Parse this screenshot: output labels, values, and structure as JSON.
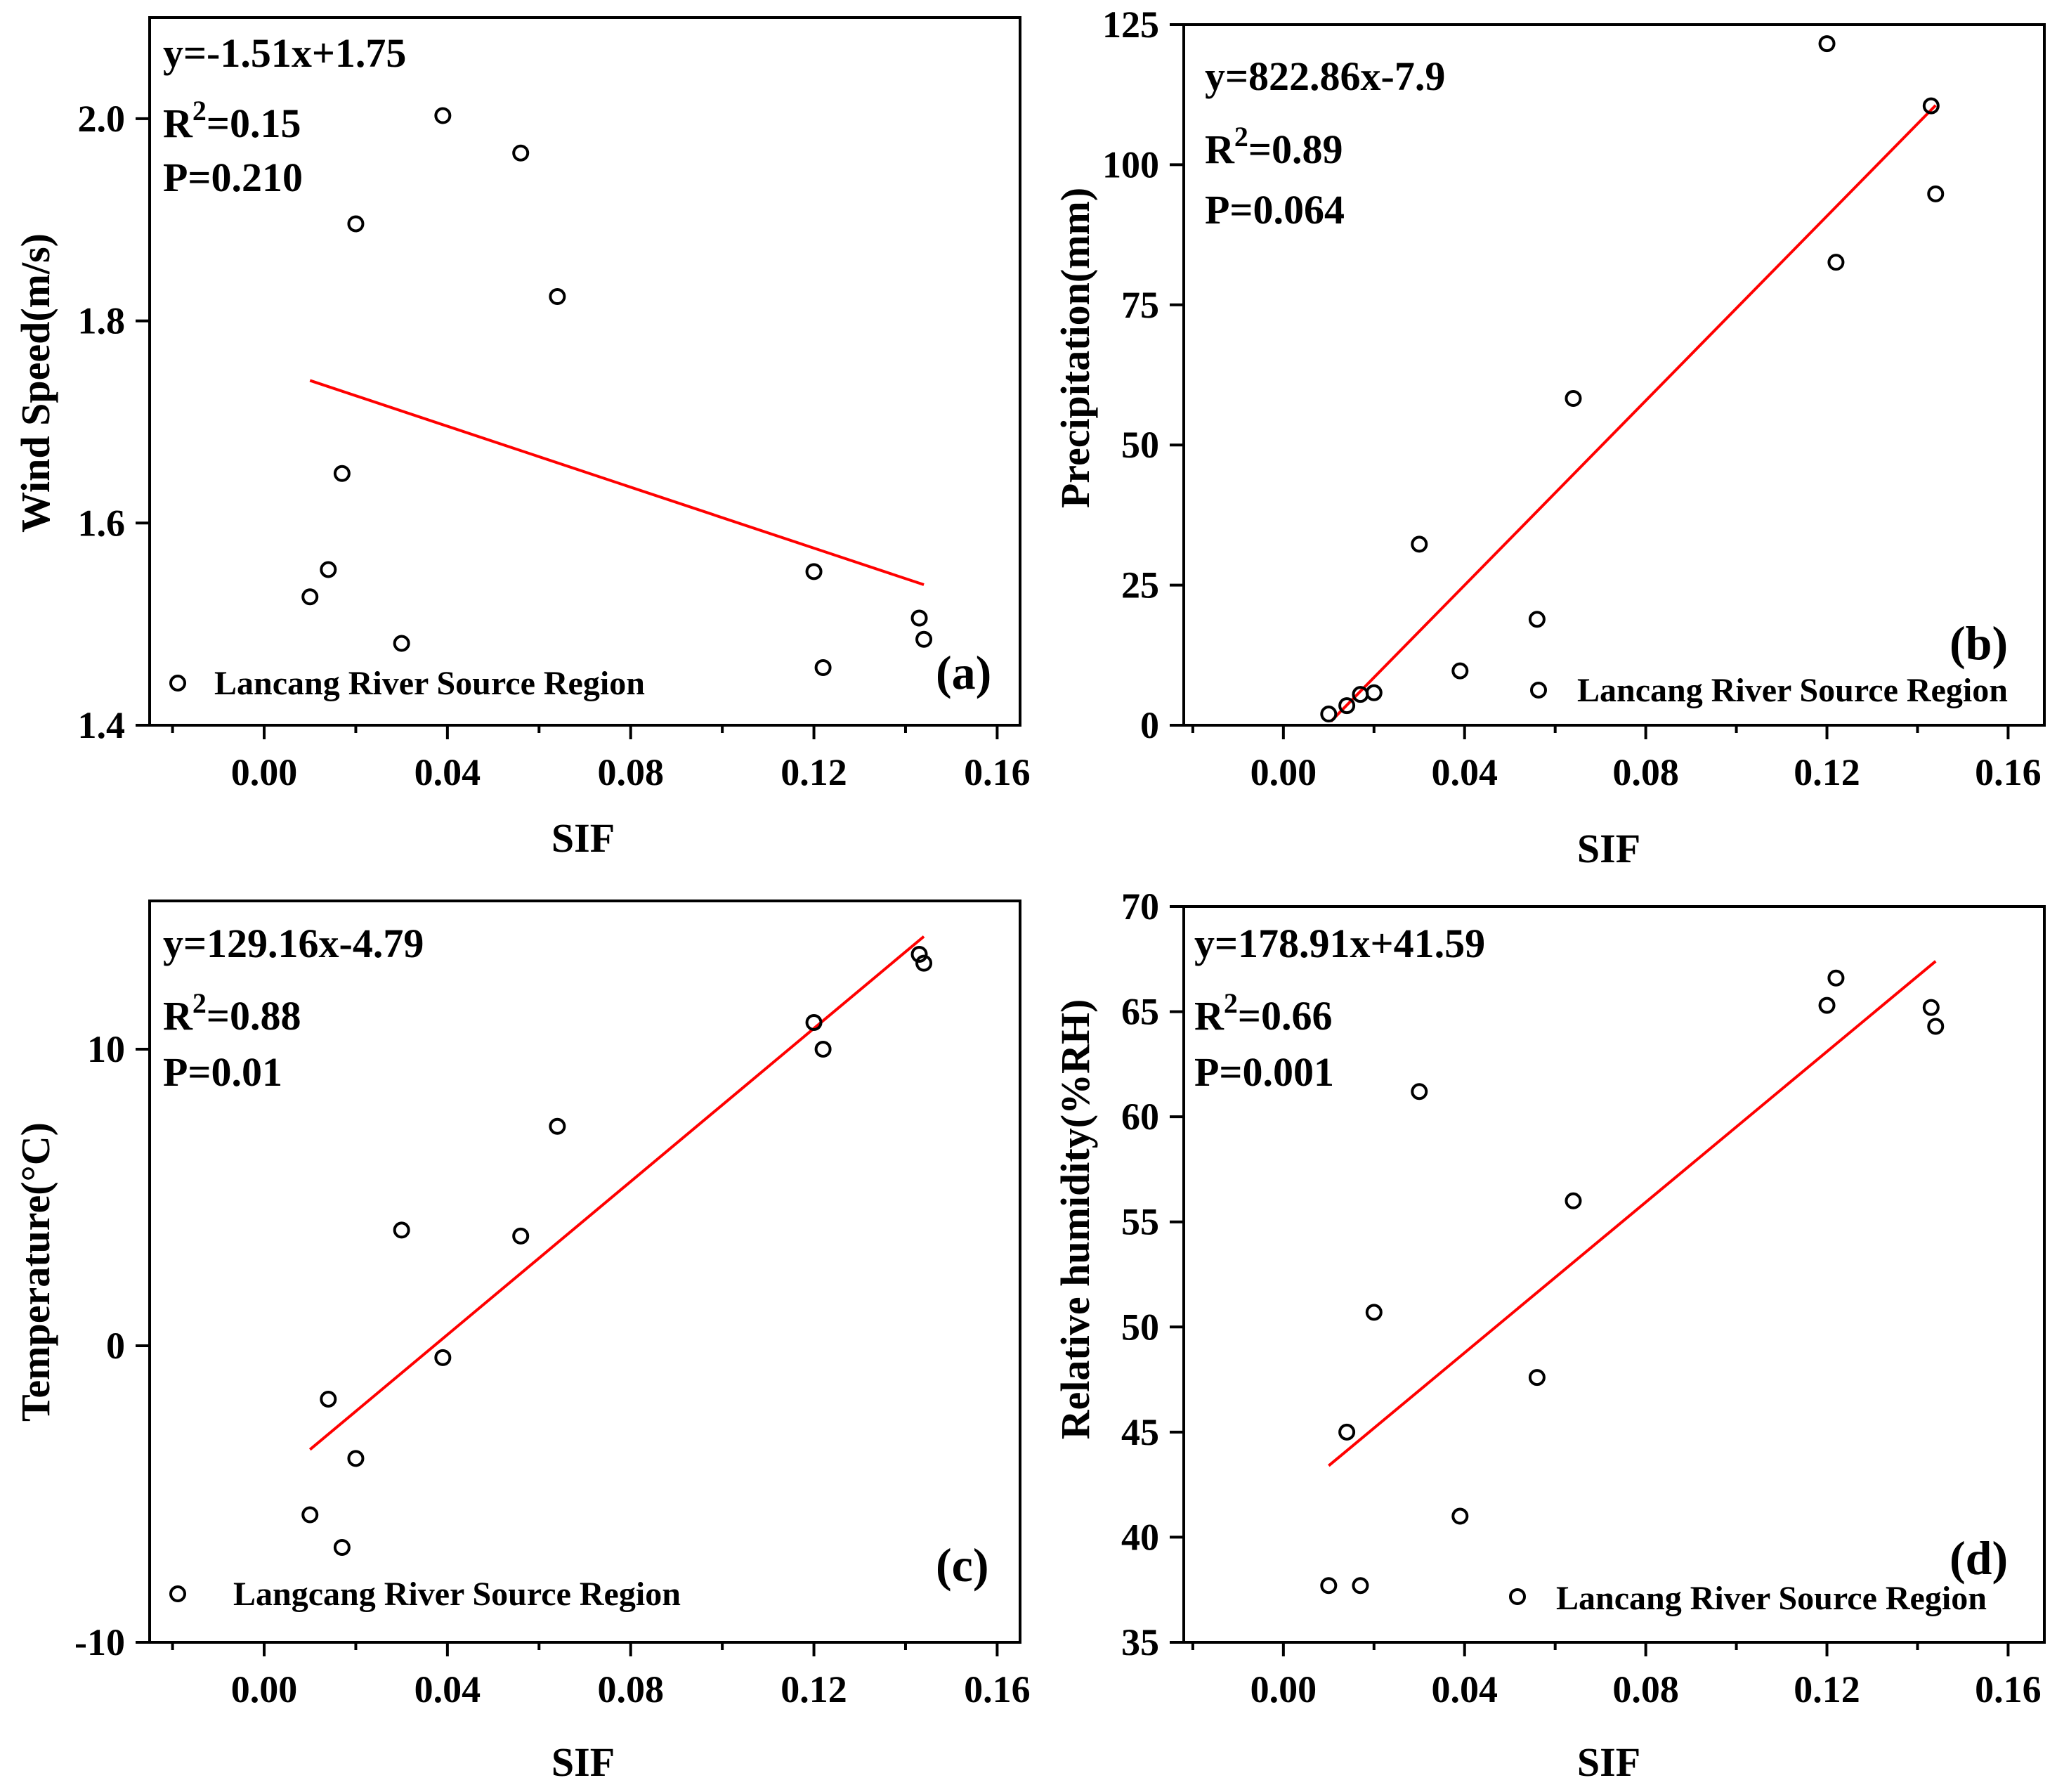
{
  "chart_data": [
    {
      "type": "scatter",
      "panel_label": "(a)",
      "xlabel": "SIF",
      "ylabel": "Wind Speed(m/s)",
      "xlim": [
        -0.025,
        0.165
      ],
      "ylim": [
        1.4,
        2.1
      ],
      "xticks": [
        0.0,
        0.04,
        0.08,
        0.12,
        0.16
      ],
      "xtick_labels": [
        "0.00",
        "0.04",
        "0.08",
        "0.12",
        "0.16"
      ],
      "yticks": [
        1.4,
        1.6,
        1.8,
        2.0
      ],
      "ytick_labels": [
        "1.4",
        "1.6",
        "1.8",
        "2.0"
      ],
      "equation": "y=-1.51x+1.75",
      "r2_prefix": "R",
      "r2_sup": "2",
      "r2_value": "=0.15",
      "p_value": "P=0.210",
      "legend": "Lancang River Source Region",
      "fit": {
        "x": [
          0.01,
          0.144
        ],
        "y": [
          1.741,
          1.539
        ]
      },
      "points": [
        {
          "x": 0.01,
          "y": 1.527
        },
        {
          "x": 0.014,
          "y": 1.554
        },
        {
          "x": 0.017,
          "y": 1.649
        },
        {
          "x": 0.02,
          "y": 1.896
        },
        {
          "x": 0.03,
          "y": 1.481
        },
        {
          "x": 0.039,
          "y": 2.003
        },
        {
          "x": 0.056,
          "y": 1.966
        },
        {
          "x": 0.064,
          "y": 1.824
        },
        {
          "x": 0.12,
          "y": 1.552
        },
        {
          "x": 0.122,
          "y": 1.457
        },
        {
          "x": 0.143,
          "y": 1.506
        },
        {
          "x": 0.144,
          "y": 1.485
        }
      ]
    },
    {
      "type": "scatter",
      "panel_label": "(b)",
      "xlabel": "SIF",
      "ylabel": "Precipitation(mm)",
      "xlim": [
        -0.022,
        0.168
      ],
      "ylim": [
        0,
        125
      ],
      "xticks": [
        0.0,
        0.04,
        0.08,
        0.12,
        0.16
      ],
      "xtick_labels": [
        "0.00",
        "0.04",
        "0.08",
        "0.12",
        "0.16"
      ],
      "yticks": [
        0,
        25,
        50,
        75,
        100,
        125
      ],
      "ytick_labels": [
        "0",
        "25",
        "50",
        "75",
        "100",
        "125"
      ],
      "equation": "y=822.86x-7.9",
      "r2_prefix": "R",
      "r2_sup": "2",
      "r2_value": "=0.89",
      "p_value": "P=0.064",
      "legend": "Lancang River Source Region",
      "fit": {
        "x": [
          0.0105,
          0.144
        ],
        "y": [
          0.7,
          110.6
        ]
      },
      "points": [
        {
          "x": 0.01,
          "y": 2.0
        },
        {
          "x": 0.014,
          "y": 3.5
        },
        {
          "x": 0.017,
          "y": 5.5
        },
        {
          "x": 0.02,
          "y": 5.8
        },
        {
          "x": 0.03,
          "y": 32.3
        },
        {
          "x": 0.039,
          "y": 9.7
        },
        {
          "x": 0.056,
          "y": 18.9
        },
        {
          "x": 0.064,
          "y": 58.3
        },
        {
          "x": 0.12,
          "y": 121.6
        },
        {
          "x": 0.122,
          "y": 82.6
        },
        {
          "x": 0.143,
          "y": 110.5
        },
        {
          "x": 0.144,
          "y": 94.8
        }
      ]
    },
    {
      "type": "scatter",
      "panel_label": "(c)",
      "xlabel": "SIF",
      "ylabel": "Temperature(°C)",
      "xlim": [
        -0.025,
        0.165
      ],
      "ylim": [
        -10,
        15
      ],
      "xticks": [
        0.0,
        0.04,
        0.08,
        0.12,
        0.16
      ],
      "xtick_labels": [
        "0.00",
        "0.04",
        "0.08",
        "0.12",
        "0.16"
      ],
      "yticks": [
        -10,
        0,
        10
      ],
      "ytick_labels": [
        "-10",
        "0",
        "10"
      ],
      "equation": "y=129.16x-4.79",
      "r2_prefix": "R",
      "r2_sup": "2",
      "r2_value": "=0.88",
      "p_value": "P=0.01",
      "legend": "Langcang River Source Region",
      "fit": {
        "x": [
          0.01,
          0.144
        ],
        "y": [
          -3.5,
          13.8
        ]
      },
      "points": [
        {
          "x": 0.01,
          "y": -5.7
        },
        {
          "x": 0.014,
          "y": -1.8
        },
        {
          "x": 0.017,
          "y": -6.8
        },
        {
          "x": 0.02,
          "y": -3.8
        },
        {
          "x": 0.03,
          "y": 3.9
        },
        {
          "x": 0.039,
          "y": -0.4
        },
        {
          "x": 0.056,
          "y": 3.7
        },
        {
          "x": 0.064,
          "y": 7.4
        },
        {
          "x": 0.12,
          "y": 10.9
        },
        {
          "x": 0.122,
          "y": 10.0
        },
        {
          "x": 0.143,
          "y": 13.2
        },
        {
          "x": 0.144,
          "y": 12.9
        }
      ]
    },
    {
      "type": "scatter",
      "panel_label": "(d)",
      "xlabel": "SIF",
      "ylabel": "Relative humidity(%RH)",
      "xlim": [
        -0.022,
        0.168
      ],
      "ylim": [
        35,
        70
      ],
      "xticks": [
        0.0,
        0.04,
        0.08,
        0.12,
        0.16
      ],
      "xtick_labels": [
        "0.00",
        "0.04",
        "0.08",
        "0.12",
        "0.16"
      ],
      "yticks": [
        35,
        40,
        45,
        50,
        55,
        60,
        65,
        70
      ],
      "ytick_labels": [
        "35",
        "40",
        "45",
        "50",
        "55",
        "60",
        "65",
        "70"
      ],
      "equation": "y=178.91x+41.59",
      "r2_prefix": "R",
      "r2_sup": "2",
      "r2_value": "=0.66",
      "p_value": "P=0.001",
      "legend": "Lancang River Source Region",
      "fit": {
        "x": [
          0.01,
          0.144
        ],
        "y": [
          43.4,
          67.4
        ]
      },
      "points": [
        {
          "x": 0.01,
          "y": 37.7
        },
        {
          "x": 0.014,
          "y": 45.0
        },
        {
          "x": 0.017,
          "y": 37.7
        },
        {
          "x": 0.02,
          "y": 50.7
        },
        {
          "x": 0.03,
          "y": 61.2
        },
        {
          "x": 0.039,
          "y": 41.0
        },
        {
          "x": 0.056,
          "y": 47.6
        },
        {
          "x": 0.064,
          "y": 56.0
        },
        {
          "x": 0.12,
          "y": 65.3
        },
        {
          "x": 0.122,
          "y": 66.6
        },
        {
          "x": 0.143,
          "y": 65.2
        },
        {
          "x": 0.144,
          "y": 64.3
        }
      ]
    }
  ]
}
